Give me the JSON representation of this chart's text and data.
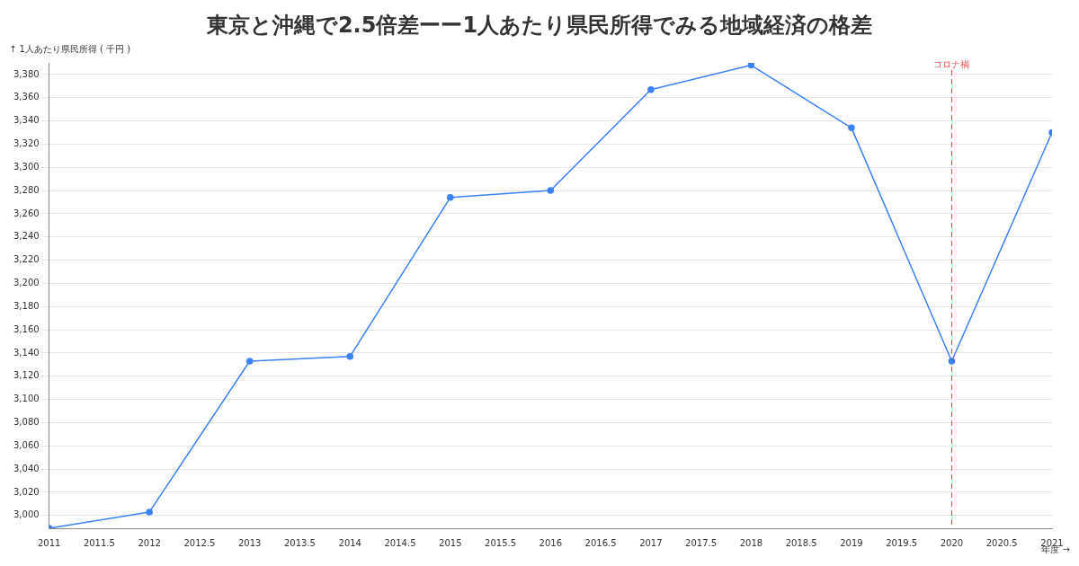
{
  "chart_data": {
    "type": "line",
    "title": "東京と沖縄で2.5倍差ーー1人あたり県民所得でみる地域経済の格差",
    "ylabel": "↑ 1人あたり県民所得 ( 千円 )",
    "xlabel": "年度 →",
    "x": [
      2011,
      2012,
      2013,
      2014,
      2015,
      2016,
      2017,
      2018,
      2019,
      2020,
      2021
    ],
    "series": [
      {
        "color": "#3b82f6",
        "values": [
          2989,
          3003,
          3133,
          3137,
          3274,
          3280,
          3367,
          3388,
          3334,
          3133,
          3330
        ]
      }
    ],
    "xlim": [
      2011,
      2021
    ],
    "xticks": [
      2011,
      2011.5,
      2012,
      2012.5,
      2013,
      2013.5,
      2014,
      2014.5,
      2015,
      2015.5,
      2016,
      2016.5,
      2017,
      2017.5,
      2018,
      2018.5,
      2019,
      2019.5,
      2020,
      2020.5,
      2021
    ],
    "ylim": [
      2989,
      3390
    ],
    "yticks": [
      {
        "value": 3000,
        "label": "3,000"
      },
      {
        "value": 3020,
        "label": "3,020"
      },
      {
        "value": 3040,
        "label": "3,040"
      },
      {
        "value": 3060,
        "label": "3,060"
      },
      {
        "value": 3080,
        "label": "3,080"
      },
      {
        "value": 3100,
        "label": "3,100"
      },
      {
        "value": 3120,
        "label": "3,120"
      },
      {
        "value": 3140,
        "label": "3,140"
      },
      {
        "value": 3160,
        "label": "3,160"
      },
      {
        "value": 3180,
        "label": "3,180"
      },
      {
        "value": 3200,
        "label": "3,200"
      },
      {
        "value": 3220,
        "label": "3,220"
      },
      {
        "value": 3240,
        "label": "3,240"
      },
      {
        "value": 3260,
        "label": "3,260"
      },
      {
        "value": 3280,
        "label": "3,280"
      },
      {
        "value": 3300,
        "label": "3,300"
      },
      {
        "value": 3320,
        "label": "3,320"
      },
      {
        "value": 3340,
        "label": "3,340"
      },
      {
        "value": 3360,
        "label": "3,360"
      },
      {
        "value": 3380,
        "label": "3,380"
      }
    ],
    "ref_lines": [
      {
        "axis": "x",
        "value": 2020,
        "label": "コロナ禍",
        "color": "#ef4444",
        "line_style": "dashed"
      }
    ],
    "grid": "y",
    "marker": "circle",
    "line_style": "solid",
    "legend": false
  }
}
